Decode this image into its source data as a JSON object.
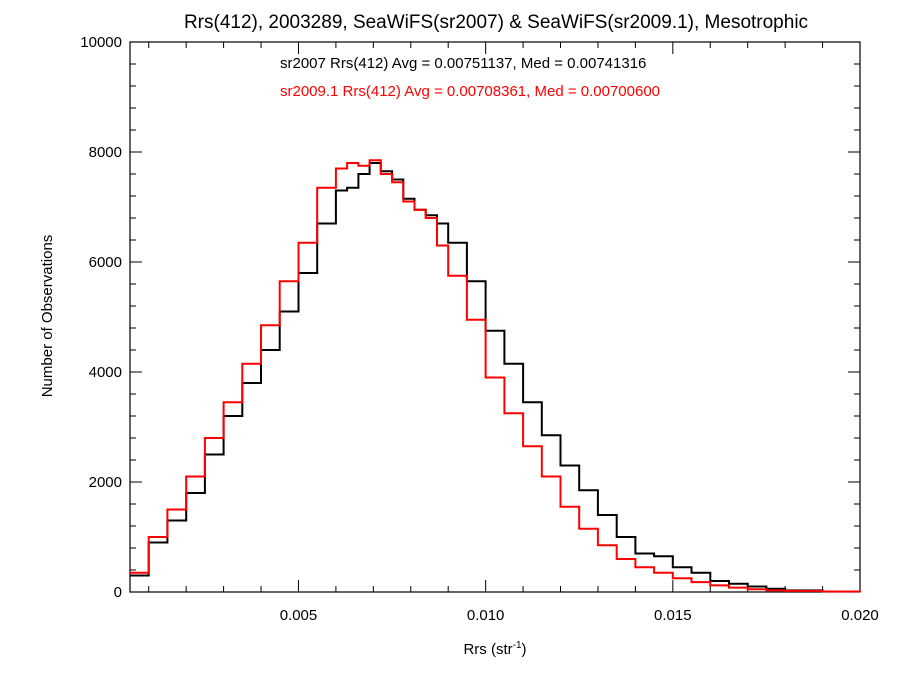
{
  "chart_data": {
    "type": "line",
    "step": true,
    "title": "Rrs(412), 2003289, SeaWiFS(sr2007) & SeaWiFS(sr2009.1), Mesotrophic",
    "xlabel": "Rrs (str",
    "xlabel_sup": "-1",
    "xlabel_end": ")",
    "ylabel": "Number of Observations",
    "xlim": [
      0.0005,
      0.02
    ],
    "ylim": [
      0,
      10000
    ],
    "x_ticks": [
      0.005,
      0.01,
      0.015,
      0.02
    ],
    "x_tick_labels": [
      "0.005",
      "0.010",
      "0.015",
      "0.020"
    ],
    "y_ticks": [
      0,
      2000,
      4000,
      6000,
      8000,
      10000
    ],
    "y_tick_labels": [
      "0",
      "2000",
      "4000",
      "6000",
      "8000",
      "10000"
    ],
    "grid": false,
    "annotations": [
      {
        "text": "sr2007 Rrs(412) Avg = 0.00751137, Med = 0.00741316",
        "color": "#000000"
      },
      {
        "text": "sr2009.1 Rrs(412) Avg = 0.00708361, Med = 0.00700600",
        "color": "#ff0000"
      }
    ],
    "series": [
      {
        "color": "#000000",
        "x": [
          0.0005,
          0.001,
          0.0015,
          0.002,
          0.0025,
          0.003,
          0.0035,
          0.004,
          0.0045,
          0.005,
          0.0055,
          0.006,
          0.0063,
          0.0066,
          0.0069,
          0.0072,
          0.0075,
          0.0078,
          0.0081,
          0.0084,
          0.0087,
          0.009,
          0.0095,
          0.01,
          0.0105,
          0.011,
          0.0115,
          0.012,
          0.0125,
          0.013,
          0.0135,
          0.014,
          0.0145,
          0.015,
          0.0155,
          0.016,
          0.0165,
          0.017,
          0.0175,
          0.018,
          0.019,
          0.02
        ],
        "y": [
          300,
          900,
          1300,
          1800,
          2500,
          3200,
          3800,
          4400,
          5100,
          5800,
          6700,
          7300,
          7350,
          7600,
          7800,
          7650,
          7500,
          7150,
          6950,
          6850,
          6700,
          6350,
          5650,
          4750,
          4150,
          3450,
          2850,
          2300,
          1850,
          1400,
          1000,
          700,
          650,
          450,
          350,
          200,
          150,
          100,
          60,
          30,
          10,
          0
        ]
      },
      {
        "color": "#ff0000",
        "x": [
          0.0005,
          0.001,
          0.0015,
          0.002,
          0.0025,
          0.003,
          0.0035,
          0.004,
          0.0045,
          0.005,
          0.0055,
          0.006,
          0.0063,
          0.0066,
          0.0069,
          0.0072,
          0.0075,
          0.0078,
          0.0081,
          0.0084,
          0.0087,
          0.009,
          0.0095,
          0.01,
          0.0105,
          0.011,
          0.0115,
          0.012,
          0.0125,
          0.013,
          0.0135,
          0.014,
          0.0145,
          0.015,
          0.0155,
          0.016,
          0.0165,
          0.017,
          0.0175,
          0.018,
          0.019,
          0.02
        ],
        "y": [
          350,
          1000,
          1500,
          2100,
          2800,
          3450,
          4150,
          4850,
          5650,
          6350,
          7350,
          7700,
          7800,
          7750,
          7850,
          7600,
          7450,
          7100,
          6950,
          6800,
          6300,
          5750,
          4950,
          3900,
          3250,
          2650,
          2100,
          1550,
          1150,
          850,
          600,
          450,
          350,
          250,
          180,
          120,
          80,
          50,
          30,
          20,
          10,
          0
        ]
      }
    ]
  }
}
